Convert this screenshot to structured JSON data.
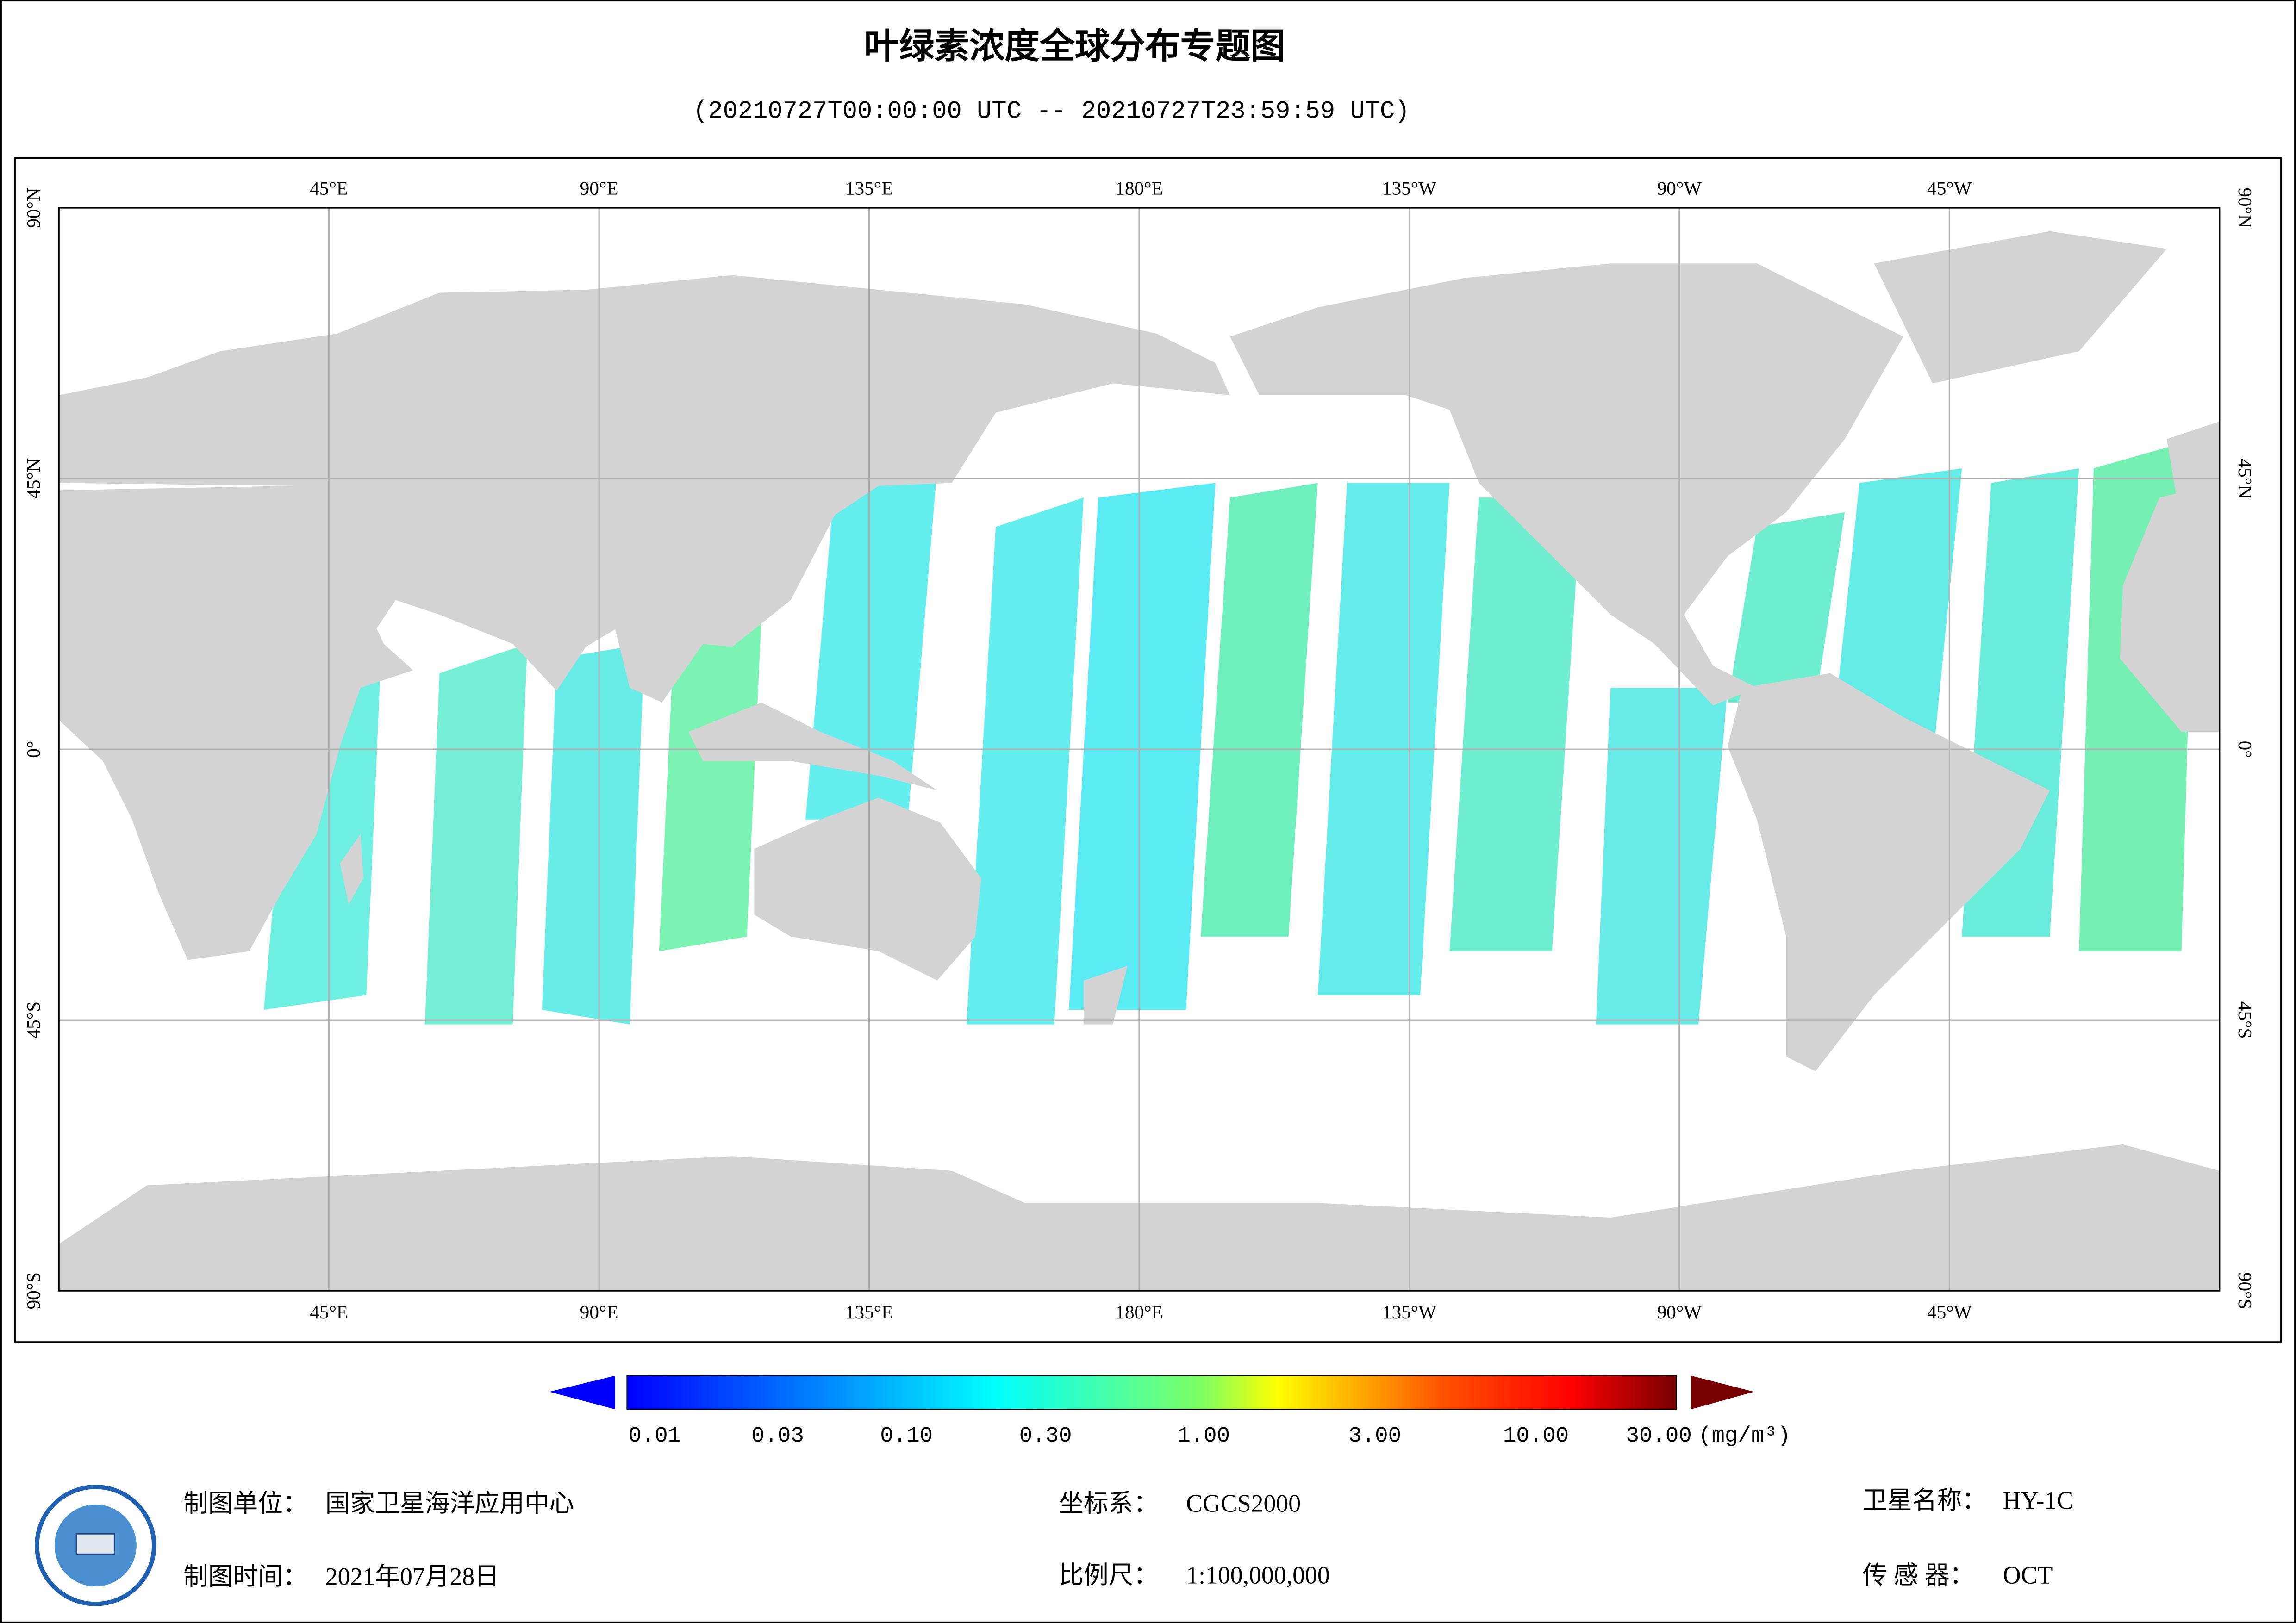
{
  "header": {
    "title": "叶绿素浓度全球分布专题图",
    "subtitle": "(20210727T00:00:00 UTC -- 20210727T23:59:59 UTC)"
  },
  "map": {
    "lon_labels": [
      "45°E",
      "90°E",
      "135°E",
      "180°E",
      "135°W",
      "90°W",
      "45°W"
    ],
    "lat_labels": [
      "90°N",
      "45°N",
      "0°",
      "45°S",
      "90°S"
    ]
  },
  "legend": {
    "tick_labels": [
      "0.01",
      "0.03",
      "0.10",
      "0.30",
      "1.00",
      "3.00",
      "10.00",
      "30.00"
    ],
    "unit": "(mg/m³)"
  },
  "footer": {
    "items": [
      {
        "label": "制图单位：",
        "value": "国家卫星海洋应用中心"
      },
      {
        "label": "制图时间：",
        "value": "2021年07月28日"
      },
      {
        "label": "坐标系：",
        "value": "CGCS2000"
      },
      {
        "label": "比例尺：",
        "value": "1:100,000,000"
      },
      {
        "label": "卫星名称：",
        "value": "HY-1C"
      },
      {
        "label": "传 感 器：",
        "value": "OCT"
      }
    ]
  }
}
